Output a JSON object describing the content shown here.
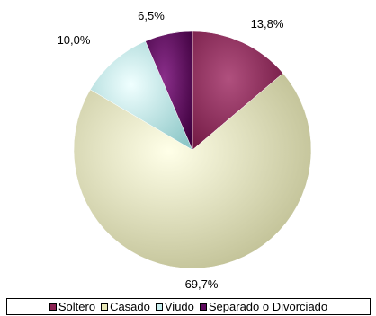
{
  "chart_data": {
    "type": "pie",
    "title": "",
    "slices": [
      {
        "label": "Soltero",
        "value": 13.8,
        "value_label": "13,8%",
        "color": "#8B2252"
      },
      {
        "label": "Casado",
        "value": 69.7,
        "value_label": "69,7%",
        "color": "#E8E8B8"
      },
      {
        "label": "Viudo",
        "value": 10.0,
        "value_label": "10,0%",
        "color": "#C8EEEE"
      },
      {
        "label": "Separado o Divorciado",
        "value": 6.5,
        "value_label": "6,5%",
        "color": "#5E0A5E"
      }
    ],
    "legend": {
      "placement": "bottom"
    }
  }
}
